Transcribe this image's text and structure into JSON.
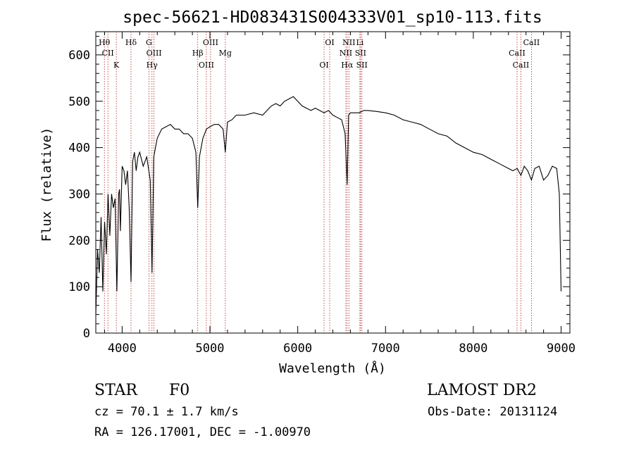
{
  "chart_data": {
    "type": "line",
    "title": "spec-56621-HD083431S004333V01_sp10-113.fits",
    "xlabel": "Wavelength (Å)",
    "ylabel": "Flux (relative)",
    "xlim": [
      3700,
      9100
    ],
    "ylim": [
      0,
      650
    ],
    "xticks": [
      "4000",
      "5000",
      "6000",
      "7000",
      "8000",
      "9000"
    ],
    "yticks": [
      "0",
      "100",
      "200",
      "300",
      "400",
      "500",
      "600"
    ],
    "grid": false,
    "legend": "none",
    "series": [
      {
        "x": [
          3700,
          3720,
          3740,
          3760,
          3780,
          3800,
          3820,
          3840,
          3860,
          3880,
          3900,
          3920,
          3940,
          3960,
          3970,
          3980,
          4000,
          4020,
          4040,
          4060,
          4080,
          4101,
          4120,
          4140,
          4160,
          4180,
          4200,
          4240,
          4280,
          4320,
          4340,
          4360,
          4380,
          4400,
          4450,
          4500,
          4550,
          4600,
          4650,
          4700,
          4750,
          4800,
          4840,
          4861,
          4880,
          4920,
          4960,
          5000,
          5050,
          5100,
          5150,
          5175,
          5200,
          5250,
          5300,
          5400,
          5500,
          5600,
          5650,
          5700,
          5750,
          5800,
          5850,
          5900,
          5950,
          6000,
          6050,
          6100,
          6150,
          6200,
          6250,
          6300,
          6350,
          6400,
          6450,
          6500,
          6540,
          6563,
          6580,
          6600,
          6650,
          6700,
          6750,
          6800,
          6900,
          7000,
          7100,
          7200,
          7300,
          7400,
          7500,
          7600,
          7700,
          7800,
          7900,
          8000,
          8100,
          8200,
          8300,
          8400,
          8450,
          8500,
          8542,
          8580,
          8620,
          8662,
          8700,
          8750,
          8800,
          8850,
          8900,
          8950,
          8980,
          9000
        ],
        "y": [
          40,
          180,
          130,
          250,
          90,
          240,
          170,
          300,
          210,
          300,
          270,
          290,
          90,
          300,
          310,
          220,
          360,
          350,
          320,
          350,
          270,
          110,
          370,
          390,
          350,
          380,
          390,
          360,
          380,
          330,
          130,
          380,
          400,
          420,
          440,
          445,
          450,
          440,
          440,
          430,
          430,
          420,
          390,
          270,
          380,
          420,
          440,
          445,
          450,
          450,
          440,
          390,
          455,
          460,
          470,
          470,
          475,
          470,
          480,
          490,
          495,
          490,
          500,
          505,
          510,
          500,
          490,
          485,
          480,
          485,
          480,
          475,
          480,
          470,
          465,
          460,
          430,
          320,
          470,
          475,
          475,
          475,
          480,
          480,
          478,
          475,
          470,
          460,
          455,
          450,
          440,
          430,
          425,
          410,
          400,
          390,
          385,
          375,
          365,
          355,
          350,
          355,
          340,
          360,
          350,
          330,
          355,
          360,
          330,
          340,
          360,
          355,
          300,
          90
        ]
      }
    ],
    "annotations": [
      {
        "label": "Hθ",
        "x": 3798
      },
      {
        "label": "CII",
        "x": 3838
      },
      {
        "label": "K",
        "x": 3934
      },
      {
        "label": "Hδ",
        "x": 4101
      },
      {
        "label": "OIII",
        "x": 4363
      },
      {
        "label": "Hγ",
        "x": 4340
      },
      {
        "label": "G",
        "x": 4305
      },
      {
        "label": "Hβ",
        "x": 4861
      },
      {
        "label": "OIII",
        "x": 4959
      },
      {
        "label": "OIII",
        "x": 5007
      },
      {
        "label": "Mg",
        "x": 5175
      },
      {
        "label": "OI",
        "x": 6300
      },
      {
        "label": "OI",
        "x": 6364
      },
      {
        "label": "NII",
        "x": 6548
      },
      {
        "label": "Hα",
        "x": 6563
      },
      {
        "label": "NII",
        "x": 6583
      },
      {
        "label": "SII",
        "x": 6716
      },
      {
        "label": "SII",
        "x": 6731
      },
      {
        "label": "Li",
        "x": 6708
      },
      {
        "label": "CaII",
        "x": 8498
      },
      {
        "label": "CaII",
        "x": 8542
      },
      {
        "label": "CaII",
        "x": 8662
      }
    ],
    "colors": {
      "spectrum": "#000000",
      "line_markers": "#b22222"
    }
  },
  "info": {
    "class": "STAR",
    "subclass": "F0",
    "survey": "LAMOST DR2",
    "cz": "cz = 70.1 ± 1.7 km/s",
    "obs_date": "Obs-Date: 20131124",
    "coords": "RA = 126.17001, DEC =  -1.00970"
  }
}
